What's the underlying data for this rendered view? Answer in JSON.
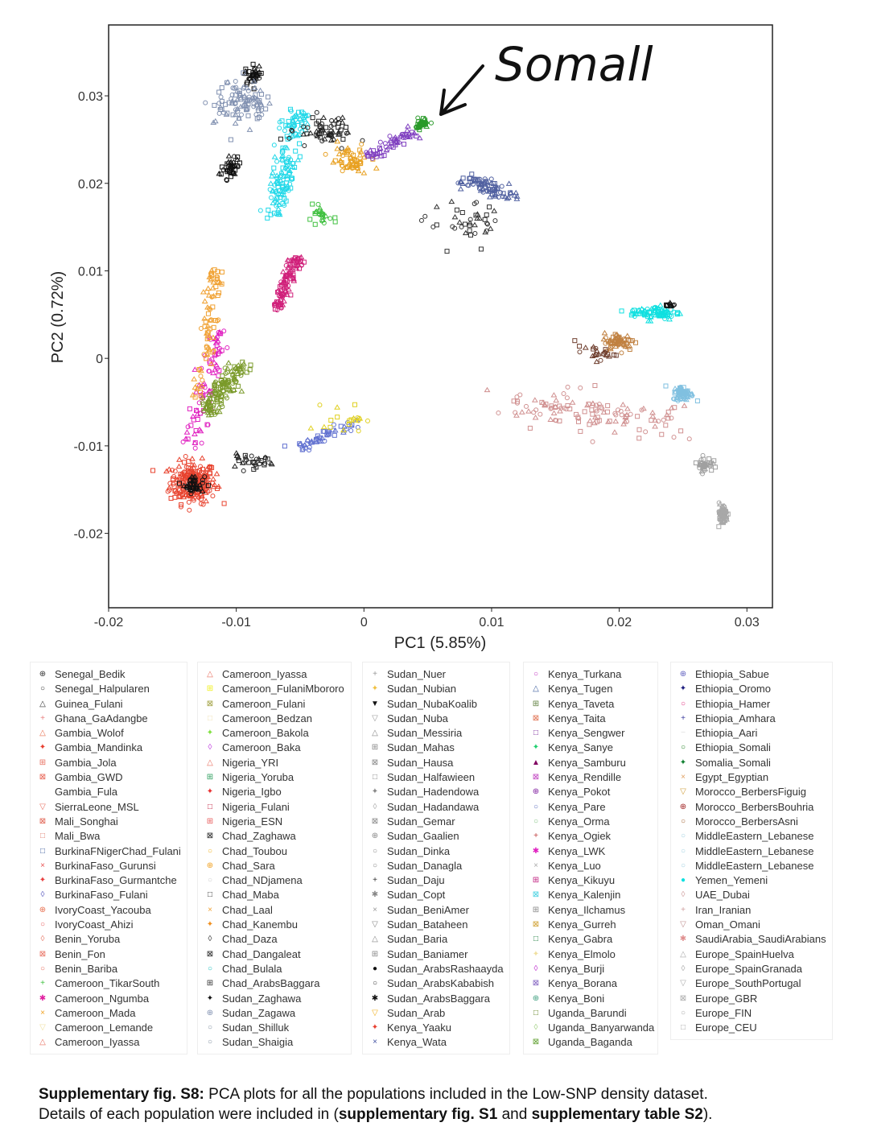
{
  "chart_data": {
    "type": "scatter",
    "xlabel": "PC1 (5.85%)",
    "ylabel": "PC2 (0.72%)",
    "xlim": [
      -0.02,
      0.032
    ],
    "ylim": [
      -0.0285,
      0.0381
    ],
    "xticks": [
      -0.02,
      -0.01,
      0,
      0.01,
      0.02,
      0.03
    ],
    "xtick_labels": [
      "-0.02",
      "-0.01",
      "0",
      "0.01",
      "0.02",
      "0.03"
    ],
    "yticks": [
      0.03,
      0.02,
      0.01,
      0,
      -0.01,
      -0.02
    ],
    "ytick_labels": [
      "0.03",
      "0.02",
      "0.01",
      "0",
      "-0.01",
      "-0.02"
    ],
    "grid": false,
    "annotation": {
      "text": "Somali",
      "handwritten_text": "Somall",
      "target": [
        0.0045,
        0.0268
      ]
    },
    "clusters": [
      {
        "center": [
          -0.0134,
          -0.0142
        ],
        "spread": [
          0.0009,
          0.0012
        ],
        "n": 220,
        "color": "#e8432f"
      },
      {
        "center": [
          -0.0133,
          -0.0144
        ],
        "spread": [
          0.0004,
          0.0005
        ],
        "n": 40,
        "color": "#111111"
      },
      {
        "from": [
          -0.01356,
          -0.01
        ],
        "to": [
          -0.0112,
          0.0033
        ],
        "noise": 0.00035,
        "n": 80,
        "color": "#e020c0"
      },
      {
        "from": [
          -0.0123,
          -0.0063
        ],
        "to": [
          -0.0098,
          -0.0008
        ],
        "noise": 0.0005,
        "n": 130,
        "color": "#7a9a2a"
      },
      {
        "from": [
          -0.0129,
          -0.0045
        ],
        "to": [
          -0.0117,
          0.0102
        ],
        "noise": 0.0003,
        "n": 80,
        "color": "#f0a030"
      },
      {
        "from": [
          -0.0069,
          0.0056
        ],
        "to": [
          -0.0052,
          0.0116
        ],
        "noise": 0.0003,
        "n": 110,
        "color": "#d0207a"
      },
      {
        "from": [
          -0.0071,
          0.0162
        ],
        "to": [
          -0.0052,
          0.0282
        ],
        "noise": 0.0005,
        "n": 150,
        "color": "#20d8e8"
      },
      {
        "center": [
          -0.0087,
          0.0323
        ],
        "spread": [
          0.0003,
          0.0005
        ],
        "n": 40,
        "color": "#111111"
      },
      {
        "center": [
          -0.0104,
          0.0217
        ],
        "spread": [
          0.0003,
          0.0008
        ],
        "n": 40,
        "color": "#111111"
      },
      {
        "center": [
          -0.0096,
          0.0295
        ],
        "spread": [
          0.001,
          0.0012
        ],
        "n": 100,
        "color": "#8090b0"
      },
      {
        "center": [
          -0.003,
          0.0259
        ],
        "spread": [
          0.0012,
          0.0008
        ],
        "n": 60,
        "color": "#222222"
      },
      {
        "center": [
          -0.0011,
          0.0226
        ],
        "spread": [
          0.0008,
          0.0008
        ],
        "n": 60,
        "color": "#e8a020"
      },
      {
        "from": [
          0.0004,
          0.0231
        ],
        "to": [
          0.0039,
          0.0259
        ],
        "noise": 0.0004,
        "n": 60,
        "color": "#8040c0"
      },
      {
        "center": [
          0.0045,
          0.0268
        ],
        "spread": [
          0.0003,
          0.0003
        ],
        "n": 40,
        "color": "#2a9a2a"
      },
      {
        "from": [
          0.008,
          0.0203
        ],
        "to": [
          0.0118,
          0.0185
        ],
        "noise": 0.0006,
        "n": 80,
        "color": "#5060a0"
      },
      {
        "center": [
          0.008,
          0.0153
        ],
        "spread": [
          0.0015,
          0.0012
        ],
        "n": 40,
        "color": "#333333"
      },
      {
        "center": [
          -0.0033,
          0.0162
        ],
        "spread": [
          0.0005,
          0.0005
        ],
        "n": 25,
        "color": "#40c040"
      },
      {
        "center": [
          -0.009,
          -0.0119
        ],
        "spread": [
          0.001,
          0.0004
        ],
        "n": 30,
        "color": "#222222"
      },
      {
        "from": [
          -0.0052,
          -0.0105
        ],
        "to": [
          -0.0008,
          -0.0073
        ],
        "noise": 0.0004,
        "n": 50,
        "color": "#6070d0"
      },
      {
        "center": [
          -0.0015,
          -0.0068
        ],
        "spread": [
          0.0008,
          0.0008
        ],
        "n": 20,
        "color": "#e0d020"
      },
      {
        "center": [
          0.0228,
          0.0052
        ],
        "spread": [
          0.001,
          0.0004
        ],
        "n": 80,
        "color": "#10e0e0"
      },
      {
        "center": [
          0.02,
          0.0019
        ],
        "spread": [
          0.0006,
          0.0005
        ],
        "n": 60,
        "color": "#c08040"
      },
      {
        "center": [
          0.025,
          -0.004
        ],
        "spread": [
          0.0004,
          0.0004
        ],
        "n": 70,
        "color": "#80c0e0"
      },
      {
        "center": [
          0.0267,
          -0.0121
        ],
        "spread": [
          0.0003,
          0.0004
        ],
        "n": 40,
        "color": "#a0a0a0"
      },
      {
        "center": [
          0.0281,
          -0.0178
        ],
        "spread": [
          0.0002,
          0.0006
        ],
        "n": 60,
        "color": "#a8a8a8"
      },
      {
        "from": [
          0.0124,
          -0.005
        ],
        "to": [
          0.0244,
          -0.0077
        ],
        "noise": 0.0014,
        "n": 120,
        "color": "#d09090"
      },
      {
        "center": [
          0.0181,
          0.0006
        ],
        "spread": [
          0.0008,
          0.0004
        ],
        "n": 25,
        "color": "#704030"
      },
      {
        "center": [
          0.0241,
          0.0061
        ],
        "spread": [
          0.0002,
          0.0001
        ],
        "n": 10,
        "color": "#111111"
      }
    ]
  },
  "legend": [
    [
      {
        "label": "Senegal_Bedik",
        "marker": "⊕",
        "color": "#333333"
      },
      {
        "label": "Senegal_Halpularen",
        "marker": "○",
        "color": "#333333"
      },
      {
        "label": "Guinea_Fulani",
        "marker": "△",
        "color": "#333333"
      },
      {
        "label": "Ghana_GaAdangbe",
        "marker": "+",
        "color": "#e88080"
      },
      {
        "label": "Gambia_Wolof",
        "marker": "△",
        "color": "#e87050"
      },
      {
        "label": "Gambia_Mandinka",
        "marker": "✦",
        "color": "#e84030"
      },
      {
        "label": "Gambia_Jola",
        "marker": "⊞",
        "color": "#e87060"
      },
      {
        "label": "Gambia_GWD",
        "marker": "⊠",
        "color": "#e86050"
      },
      {
        "label": "Gambia_Fula",
        "marker": "",
        "color": "#ffffff"
      },
      {
        "label": "SierraLeone_MSL",
        "marker": "▽",
        "color": "#e87060"
      },
      {
        "label": "Mali_Songhai",
        "marker": "⊠",
        "color": "#e06050"
      },
      {
        "label": "Mali_Bwa",
        "marker": "□",
        "color": "#e08070"
      },
      {
        "label": "BurkinaFNigerChad_Fulani",
        "marker": "□",
        "color": "#4060a0"
      },
      {
        "label": "BurkinaFaso_Gurunsi",
        "marker": "×",
        "color": "#e85050"
      },
      {
        "label": "BurkinaFaso_Gurmantche",
        "marker": "✦",
        "color": "#e84040"
      },
      {
        "label": "BurkinaFaso_Fulani",
        "marker": "◊",
        "color": "#6060c0"
      },
      {
        "label": "IvoryCoast_Yacouba",
        "marker": "⊕",
        "color": "#e87050"
      },
      {
        "label": "IvoryCoast_Ahizi",
        "marker": "○",
        "color": "#e86060"
      },
      {
        "label": "Benin_Yoruba",
        "marker": "◊",
        "color": "#e88070"
      },
      {
        "label": "Benin_Fon",
        "marker": "⊠",
        "color": "#e87060"
      },
      {
        "label": "Benin_Bariba",
        "marker": "○",
        "color": "#e87060"
      },
      {
        "label": "Cameroon_TikarSouth",
        "marker": "+",
        "color": "#40c040"
      },
      {
        "label": "Cameroon_Ngumba",
        "marker": "✱",
        "color": "#e020a0"
      },
      {
        "label": "Cameroon_Mada",
        "marker": "×",
        "color": "#f0a020"
      },
      {
        "label": "Cameroon_Lemande",
        "marker": "▽",
        "color": "#f0e0a0"
      },
      {
        "label": "Cameroon_Iyassa",
        "marker": "△",
        "color": "#e87060"
      }
    ],
    [
      {
        "label": "Cameroon_Iyassa",
        "marker": "△",
        "color": "#e87060"
      },
      {
        "label": "Cameroon_FulaniMbororo",
        "marker": "⊞",
        "color": "#f0f020"
      },
      {
        "label": "Cameroon_Fulani",
        "marker": "⊠",
        "color": "#a0a040"
      },
      {
        "label": "Cameroon_Bedzan",
        "marker": "□",
        "color": "#f0e0b0"
      },
      {
        "label": "Cameroon_Bakola",
        "marker": "✦",
        "color": "#80e040"
      },
      {
        "label": "Cameroon_Baka",
        "marker": "◊",
        "color": "#c040e0"
      },
      {
        "label": "Nigeria_YRI",
        "marker": "△",
        "color": "#e87060"
      },
      {
        "label": "Nigeria_Yoruba",
        "marker": "⊞",
        "color": "#30a060"
      },
      {
        "label": "Nigeria_Igbo",
        "marker": "✦",
        "color": "#e83030"
      },
      {
        "label": "Nigeria_Fulani",
        "marker": "□",
        "color": "#c02040"
      },
      {
        "label": "Nigeria_ESN",
        "marker": "⊞",
        "color": "#e86060"
      },
      {
        "label": "Chad_Zaghawa",
        "marker": "⊠",
        "color": "#222222"
      },
      {
        "label": "Chad_Toubou",
        "marker": "○",
        "color": "#f0b020"
      },
      {
        "label": "Chad_Sara",
        "marker": "⊕",
        "color": "#f0a020"
      },
      {
        "label": "Chad_NDjamena",
        "marker": "○",
        "color": "#cccccc"
      },
      {
        "label": "Chad_Maba",
        "marker": "□",
        "color": "#333333"
      },
      {
        "label": "Chad_Laal",
        "marker": "×",
        "color": "#f0a030"
      },
      {
        "label": "Chad_Kanembu",
        "marker": "✦",
        "color": "#f09020"
      },
      {
        "label": "Chad_Daza",
        "marker": "◊",
        "color": "#333333"
      },
      {
        "label": "Chad_Dangaleat",
        "marker": "⊠",
        "color": "#222222"
      },
      {
        "label": "Chad_Bulala",
        "marker": "○",
        "color": "#20c0c0"
      },
      {
        "label": "Chad_ArabsBaggara",
        "marker": "⊞",
        "color": "#333333"
      },
      {
        "label": "Sudan_Zaghawa",
        "marker": "✦",
        "color": "#111111"
      },
      {
        "label": "Sudan_Zagawa",
        "marker": "⊕",
        "color": "#8090b0"
      },
      {
        "label": "Sudan_Shilluk",
        "marker": "○",
        "color": "#8090a0"
      },
      {
        "label": "Sudan_Shaigia",
        "marker": "○",
        "color": "#8090a0"
      }
    ],
    [
      {
        "label": "Sudan_Nuer",
        "marker": "+",
        "color": "#999999"
      },
      {
        "label": "Sudan_Nubian",
        "marker": "✦",
        "color": "#f0c040"
      },
      {
        "label": "Sudan_NubaKoalib",
        "marker": "▼",
        "color": "#111111"
      },
      {
        "label": "Sudan_Nuba",
        "marker": "▽",
        "color": "#999999"
      },
      {
        "label": "Sudan_Messiria",
        "marker": "△",
        "color": "#888888"
      },
      {
        "label": "Sudan_Mahas",
        "marker": "⊞",
        "color": "#888888"
      },
      {
        "label": "Sudan_Hausa",
        "marker": "⊠",
        "color": "#888888"
      },
      {
        "label": "Sudan_Halfawieen",
        "marker": "□",
        "color": "#888888"
      },
      {
        "label": "Sudan_Hadendowa",
        "marker": "✦",
        "color": "#888888"
      },
      {
        "label": "Sudan_Hadandawa",
        "marker": "◊",
        "color": "#aaaaaa"
      },
      {
        "label": "Sudan_Gemar",
        "marker": "⊠",
        "color": "#888888"
      },
      {
        "label": "Sudan_Gaalien",
        "marker": "⊕",
        "color": "#888888"
      },
      {
        "label": "Sudan_Dinka",
        "marker": "○",
        "color": "#888888"
      },
      {
        "label": "Sudan_Danagla",
        "marker": "○",
        "color": "#888888"
      },
      {
        "label": "Sudan_Daju",
        "marker": "+",
        "color": "#333333"
      },
      {
        "label": "Sudan_Copt",
        "marker": "✱",
        "color": "#888888"
      },
      {
        "label": "Sudan_BeniAmer",
        "marker": "×",
        "color": "#999999"
      },
      {
        "label": "Sudan_Bataheen",
        "marker": "▽",
        "color": "#888888"
      },
      {
        "label": "Sudan_Baria",
        "marker": "△",
        "color": "#888888"
      },
      {
        "label": "Sudan_Baniamer",
        "marker": "⊞",
        "color": "#888888"
      },
      {
        "label": "Sudan_ArabsRashaayda",
        "marker": "●",
        "color": "#111111"
      },
      {
        "label": "Sudan_ArabsKababish",
        "marker": "○",
        "color": "#333333"
      },
      {
        "label": "Sudan_ArabsBaggara",
        "marker": "✱",
        "color": "#111111"
      },
      {
        "label": "Sudan_Arab",
        "marker": "▽",
        "color": "#f0b020"
      },
      {
        "label": "Kenya_Yaaku",
        "marker": "✦",
        "color": "#e84030"
      },
      {
        "label": "Kenya_Wata",
        "marker": "×",
        "color": "#4050a0"
      }
    ],
    [
      {
        "label": "Kenya_Turkana",
        "marker": "○",
        "color": "#c030c0"
      },
      {
        "label": "Kenya_Tugen",
        "marker": "△",
        "color": "#4060a0"
      },
      {
        "label": "Kenya_Taveta",
        "marker": "⊞",
        "color": "#608040"
      },
      {
        "label": "Kenya_Taita",
        "marker": "⊠",
        "color": "#e07050"
      },
      {
        "label": "Kenya_Sengwer",
        "marker": "□",
        "color": "#8030a0"
      },
      {
        "label": "Kenya_Sanye",
        "marker": "✦",
        "color": "#20d070"
      },
      {
        "label": "Kenya_Samburu",
        "marker": "▲",
        "color": "#800060"
      },
      {
        "label": "Kenya_Rendille",
        "marker": "⊠",
        "color": "#c040c0"
      },
      {
        "label": "Kenya_Pokot",
        "marker": "⊕",
        "color": "#8020a0"
      },
      {
        "label": "Kenya_Pare",
        "marker": "○",
        "color": "#6070c0"
      },
      {
        "label": "Kenya_Orma",
        "marker": "○",
        "color": "#80c080"
      },
      {
        "label": "Kenya_Ogiek",
        "marker": "+",
        "color": "#c04040"
      },
      {
        "label": "Kenya_LWK",
        "marker": "✱",
        "color": "#e020c0"
      },
      {
        "label": "Kenya_Luo",
        "marker": "×",
        "color": "#aaaaaa"
      },
      {
        "label": "Kenya_Kikuyu",
        "marker": "⊞",
        "color": "#c02080"
      },
      {
        "label": "Kenya_Kalenjin",
        "marker": "⊠",
        "color": "#40d0e0"
      },
      {
        "label": "Kenya_Ilchamus",
        "marker": "⊞",
        "color": "#888888"
      },
      {
        "label": "Kenya_Gurreh",
        "marker": "⊠",
        "color": "#d0a030"
      },
      {
        "label": "Kenya_Gabra",
        "marker": "□",
        "color": "#208040"
      },
      {
        "label": "Kenya_Elmolo",
        "marker": "✦",
        "color": "#f0e0a0"
      },
      {
        "label": "Kenya_Burji",
        "marker": "◊",
        "color": "#c030d0"
      },
      {
        "label": "Kenya_Borana",
        "marker": "⊠",
        "color": "#8060c0"
      },
      {
        "label": "Kenya_Boni",
        "marker": "⊕",
        "color": "#40a080"
      },
      {
        "label": "Uganda_Barundi",
        "marker": "□",
        "color": "#608020"
      },
      {
        "label": "Uganda_Banyarwanda",
        "marker": "◊",
        "color": "#a0d080"
      },
      {
        "label": "Uganda_Baganda",
        "marker": "⊠",
        "color": "#60a030"
      }
    ],
    [
      {
        "label": "Ethiopia_Sabue",
        "marker": "⊕",
        "color": "#6060c0"
      },
      {
        "label": "Ethiopia_Oromo",
        "marker": "✦",
        "color": "#202080"
      },
      {
        "label": "Ethiopia_Hamer",
        "marker": "○",
        "color": "#e03080"
      },
      {
        "label": "Ethiopia_Amhara",
        "marker": "+",
        "color": "#4040a0"
      },
      {
        "label": "Ethiopia_Aari",
        "marker": "−",
        "color": "#dddddd"
      },
      {
        "label": "Ethiopia_Somali",
        "marker": "○",
        "color": "#208020"
      },
      {
        "label": "Somalia_Somali",
        "marker": "✦",
        "color": "#108030"
      },
      {
        "label": "Egypt_Egyptian",
        "marker": "×",
        "color": "#e0a060"
      },
      {
        "label": "Morocco_BerbersFiguig",
        "marker": "▽",
        "color": "#d0a040"
      },
      {
        "label": "Morocco_BerbersBouhria",
        "marker": "⊕",
        "color": "#a02020"
      },
      {
        "label": "Morocco_BerbersAsni",
        "marker": "○",
        "color": "#a06030"
      },
      {
        "label": "MiddleEastern_Lebanese",
        "marker": "○",
        "color": "#a0d0e0"
      },
      {
        "label": "MiddleEastern_Lebanese",
        "marker": "○",
        "color": "#a0d0e0"
      },
      {
        "label": "MiddleEastern_Lebanese",
        "marker": "○",
        "color": "#a0d0e0"
      },
      {
        "label": "Yemen_Yemeni",
        "marker": "●",
        "color": "#10e0e0"
      },
      {
        "label": "UAE_Dubai",
        "marker": "◊",
        "color": "#d0a0a0"
      },
      {
        "label": "Iran_Iranian",
        "marker": "+",
        "color": "#d0a0a0"
      },
      {
        "label": "Oman_Omani",
        "marker": "▽",
        "color": "#c09090"
      },
      {
        "label": "SaudiArabia_SaudiArabians",
        "marker": "✱",
        "color": "#e09090"
      },
      {
        "label": "Europe_SpainHuelva",
        "marker": "△",
        "color": "#aaaaaa"
      },
      {
        "label": "Europe_SpainGranada",
        "marker": "◊",
        "color": "#aaaaaa"
      },
      {
        "label": "Europe_SouthPortugal",
        "marker": "▽",
        "color": "#aaaaaa"
      },
      {
        "label": "Europe_GBR",
        "marker": "⊠",
        "color": "#aaaaaa"
      },
      {
        "label": "Europe_FIN",
        "marker": "○",
        "color": "#aaaaaa"
      },
      {
        "label": "Europe_CEU",
        "marker": "□",
        "color": "#aaaaaa"
      }
    ]
  ],
  "caption": {
    "bold1": "Supplementary fig. S8:",
    "text1": " PCA plots for all the populations included in the Low-SNP density dataset.",
    "text2a": "Details of each population were included in (",
    "bold2": "supplementary fig. S1",
    "text2b": " and ",
    "bold3": "supplementary table S2",
    "text2c": ")."
  }
}
